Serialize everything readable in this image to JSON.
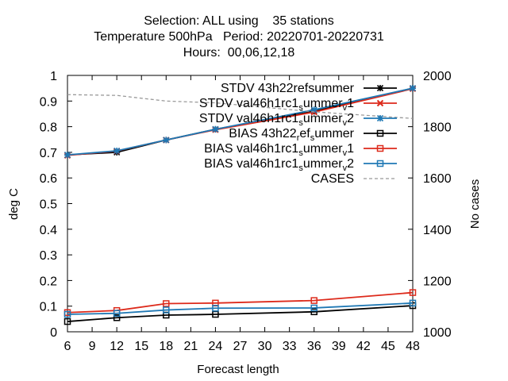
{
  "chart_data": {
    "type": "line",
    "title_lines": [
      "Selection: ALL using    35 stations",
      "Temperature 500hPa   Period: 20220701-20220731",
      "Hours:  00,06,12,18"
    ],
    "xlabel": "Forecast length",
    "ylabel": "deg C",
    "y2label": "No cases",
    "xlim": [
      6,
      48
    ],
    "ylim": [
      0,
      1
    ],
    "y2lim": [
      1000,
      2000
    ],
    "xticks": [
      6,
      9,
      12,
      15,
      18,
      21,
      24,
      27,
      30,
      33,
      36,
      39,
      42,
      45,
      48
    ],
    "yticks": [
      "0",
      "0.1",
      "0.2",
      "0.3",
      "0.4",
      "0.5",
      "0.6",
      "0.7",
      "0.8",
      "0.9",
      "1"
    ],
    "y2ticks": [
      "1000",
      "1200",
      "1400",
      "1600",
      "1800",
      "2000"
    ],
    "legend_position": "top-right",
    "grid": false,
    "x": [
      6,
      12,
      18,
      24,
      36,
      48
    ],
    "series": [
      {
        "name": "STDV 43h22_ref_summer",
        "legend": {
          "base": "STDV 43h22",
          "segs": [
            [
              "r",
              ""
            ],
            [
              "ef",
              ""
            ],
            [
              "s",
              ""
            ],
            [
              "ummer",
              ""
            ]
          ]
        },
        "color": "#000000",
        "marker": "star",
        "axis": "y1",
        "values": [
          0.69,
          0.7,
          0.748,
          0.79,
          0.86,
          0.95
        ]
      },
      {
        "name": "STDV val46h1rc1_summer_v1",
        "legend": {
          "base": "STDV val46h1rc1",
          "segs": [
            [
              "s",
              "sub"
            ],
            [
              "ummer",
              ""
            ],
            [
              "v",
              "sub"
            ],
            [
              "1",
              ""
            ]
          ]
        },
        "color": "#dd2a1b",
        "marker": "x",
        "axis": "y1",
        "values": [
          0.688,
          0.705,
          0.748,
          0.788,
          0.857,
          0.948
        ]
      },
      {
        "name": "STDV val46h1rc1_summer_v2",
        "legend": {
          "base": "STDV val46h1rc1",
          "segs": [
            [
              "s",
              "sub"
            ],
            [
              "ummer",
              ""
            ],
            [
              "v",
              "sub"
            ],
            [
              "2",
              ""
            ]
          ]
        },
        "color": "#1f78b4",
        "marker": "star",
        "axis": "y1",
        "values": [
          0.69,
          0.706,
          0.748,
          0.79,
          0.866,
          0.95
        ]
      },
      {
        "name": "BIAS 43h22_ref_summer",
        "legend": {
          "base": "BIAS 43h22",
          "segs": [
            [
              "r",
              "sub"
            ],
            [
              "ef",
              ""
            ],
            [
              "s",
              "sub"
            ],
            [
              "ummer",
              ""
            ]
          ]
        },
        "color": "#000000",
        "marker": "square",
        "axis": "y1",
        "values": [
          0.04,
          0.055,
          0.065,
          0.068,
          0.078,
          0.102
        ]
      },
      {
        "name": "BIAS val46h1rc1_summer_v1",
        "legend": {
          "base": "BIAS val46h1rc1",
          "segs": [
            [
              "s",
              "sub"
            ],
            [
              "ummer",
              ""
            ],
            [
              "v",
              "sub"
            ],
            [
              "1",
              ""
            ]
          ]
        },
        "color": "#dd2a1b",
        "marker": "square",
        "axis": "y1",
        "values": [
          0.075,
          0.083,
          0.11,
          0.112,
          0.122,
          0.153
        ]
      },
      {
        "name": "BIAS val46h1rc1_summer_v2",
        "legend": {
          "base": "BIAS val46h1rc1",
          "segs": [
            [
              "s",
              "sub"
            ],
            [
              "ummer",
              ""
            ],
            [
              "v",
              "sub"
            ],
            [
              "2",
              ""
            ]
          ]
        },
        "color": "#1f78b4",
        "marker": "square",
        "axis": "y1",
        "values": [
          0.068,
          0.072,
          0.085,
          0.092,
          0.093,
          0.112
        ]
      },
      {
        "name": "CASES",
        "legend": {
          "base": "CASES",
          "segs": []
        },
        "color": "#999999",
        "marker": "none",
        "dashed": true,
        "axis": "y2",
        "x": [
          6,
          12,
          18,
          24,
          36,
          48
        ],
        "values": [
          1925,
          1922,
          1900,
          1893,
          1858,
          1832
        ]
      }
    ]
  }
}
